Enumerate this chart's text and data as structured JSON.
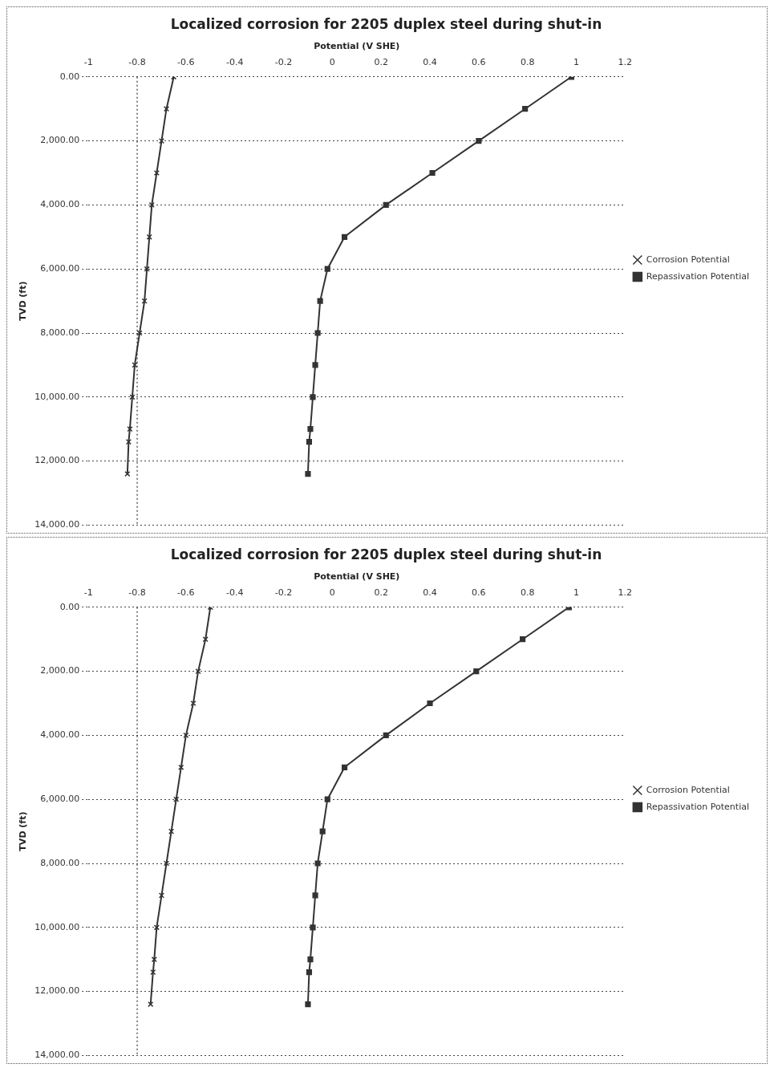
{
  "chart_data": [
    {
      "type": "line",
      "title": "Localized corrosion for 2205 duplex steel during shut-in",
      "xlabel": "Potential (V SHE)",
      "ylabel": "TVD (ft)",
      "xlim": [
        -1,
        1.2
      ],
      "xticks": [
        -1,
        -0.8,
        -0.6,
        -0.4,
        -0.2,
        0,
        0.2,
        0.4,
        0.6,
        0.8,
        1,
        1.2
      ],
      "ylim": [
        14000,
        0
      ],
      "yticks": [
        {
          "value": 0,
          "label": "0.00"
        },
        {
          "value": 2000,
          "label": "2,000.00"
        },
        {
          "value": 4000,
          "label": "4,000.00"
        },
        {
          "value": 6000,
          "label": "6,000.00"
        },
        {
          "value": 8000,
          "label": "8,000.00"
        },
        {
          "value": 10000,
          "label": "10,000.00"
        },
        {
          "value": 12000,
          "label": "12,000.00"
        },
        {
          "value": 14000,
          "label": "14,000.00"
        }
      ],
      "grid": "y",
      "legend": "right",
      "ref_lines": [
        {
          "axis": "x",
          "value": -0.8,
          "label": null,
          "line_style": "dotted"
        }
      ],
      "series": [
        {
          "name": "Corrosion Potential",
          "color": "#333333",
          "marker": "cross",
          "x": [
            -0.65,
            -0.68,
            -0.7,
            -0.72,
            -0.74,
            -0.75,
            -0.76,
            -0.77,
            -0.79,
            -0.81,
            -0.82,
            -0.83,
            -0.835,
            -0.84
          ],
          "values": [
            0,
            1000,
            2000,
            3000,
            4000,
            5000,
            6000,
            7000,
            8000,
            9000,
            10000,
            11000,
            11400,
            12400
          ]
        },
        {
          "name": "Repassivation Potential",
          "color": "#333333",
          "marker": "square",
          "x": [
            0.98,
            0.79,
            0.6,
            0.41,
            0.22,
            0.05,
            -0.02,
            -0.05,
            -0.06,
            -0.07,
            -0.08,
            -0.09,
            -0.095,
            -0.1
          ],
          "values": [
            0,
            1000,
            2000,
            3000,
            4000,
            5000,
            6000,
            7000,
            8000,
            9000,
            10000,
            11000,
            11400,
            12400
          ]
        }
      ]
    },
    {
      "type": "line",
      "title": "Localized corrosion for 2205 duplex steel during shut-in",
      "xlabel": "Potential (V SHE)",
      "ylabel": "TVD (ft)",
      "xlim": [
        -1,
        1.2
      ],
      "xticks": [
        -1,
        -0.8,
        -0.6,
        -0.4,
        -0.2,
        0,
        0.2,
        0.4,
        0.6,
        0.8,
        1,
        1.2
      ],
      "ylim": [
        14000,
        0
      ],
      "yticks": [
        {
          "value": 0,
          "label": "0.00"
        },
        {
          "value": 2000,
          "label": "2,000.00"
        },
        {
          "value": 4000,
          "label": "4,000.00"
        },
        {
          "value": 6000,
          "label": "6,000.00"
        },
        {
          "value": 8000,
          "label": "8,000.00"
        },
        {
          "value": 10000,
          "label": "10,000.00"
        },
        {
          "value": 12000,
          "label": "12,000.00"
        },
        {
          "value": 14000,
          "label": "14,000.00"
        }
      ],
      "grid": "y",
      "legend": "right",
      "ref_lines": [
        {
          "axis": "x",
          "value": -0.8,
          "label": null,
          "line_style": "dotted"
        }
      ],
      "series": [
        {
          "name": "Corrosion Potential",
          "color": "#333333",
          "marker": "cross",
          "x": [
            -0.5,
            -0.52,
            -0.55,
            -0.57,
            -0.6,
            -0.62,
            -0.64,
            -0.66,
            -0.68,
            -0.7,
            -0.72,
            -0.73,
            -0.735,
            -0.745
          ],
          "values": [
            0,
            1000,
            2000,
            3000,
            4000,
            5000,
            6000,
            7000,
            8000,
            9000,
            10000,
            11000,
            11400,
            12400
          ]
        },
        {
          "name": "Repassivation Potential",
          "color": "#333333",
          "marker": "square",
          "x": [
            0.97,
            0.78,
            0.59,
            0.4,
            0.22,
            0.05,
            -0.02,
            -0.04,
            -0.06,
            -0.07,
            -0.08,
            -0.09,
            -0.095,
            -0.1
          ],
          "values": [
            0,
            1000,
            2000,
            3000,
            4000,
            5000,
            6000,
            7000,
            8000,
            9000,
            10000,
            11000,
            11400,
            12400
          ]
        }
      ]
    }
  ]
}
